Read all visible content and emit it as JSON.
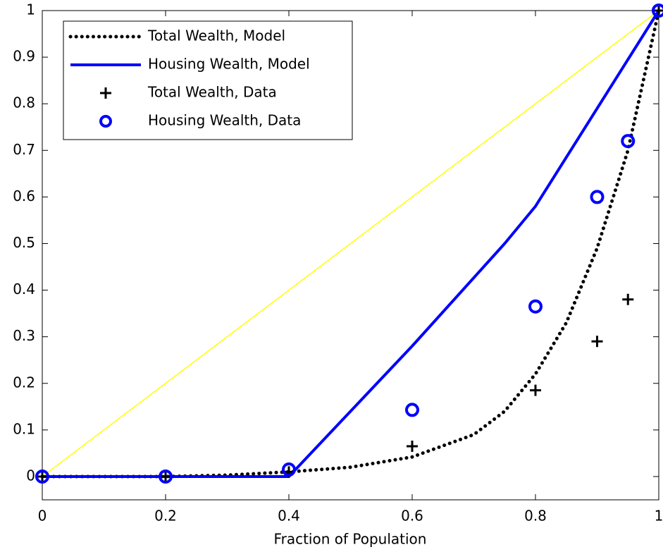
{
  "chart_data": {
    "type": "line",
    "xlabel": "Fraction of Population",
    "xlim": [
      0,
      1
    ],
    "ylim": [
      -0.05,
      1
    ],
    "xticks": [
      0,
      0.2,
      0.4,
      0.6,
      0.8,
      1
    ],
    "yticks": [
      0,
      0.1,
      0.2,
      0.3,
      0.4,
      0.5,
      0.6,
      0.7,
      0.8,
      0.9,
      1
    ],
    "grid": false,
    "legend": "upper left",
    "series": [
      {
        "name": "Total Wealth, Model",
        "color": "#000000",
        "style": "dotted",
        "marker": "none",
        "x": [
          0,
          0.1,
          0.2,
          0.3,
          0.4,
          0.5,
          0.6,
          0.7,
          0.75,
          0.8,
          0.85,
          0.9,
          0.95,
          1
        ],
        "values": [
          0,
          0,
          0,
          0.003,
          0.01,
          0.02,
          0.042,
          0.09,
          0.14,
          0.22,
          0.33,
          0.49,
          0.7,
          1
        ]
      },
      {
        "name": "Housing Wealth, Model",
        "color": "#0000ff",
        "style": "solid",
        "marker": "none",
        "x": [
          0,
          0.2,
          0.4,
          0.6,
          0.75,
          0.8,
          0.9,
          1
        ],
        "values": [
          0,
          0,
          0,
          0.28,
          0.5,
          0.58,
          0.79,
          1
        ]
      },
      {
        "name": "Total Wealth, Data",
        "color": "#000000",
        "style": "none",
        "marker": "plus",
        "x": [
          0,
          0.2,
          0.4,
          0.6,
          0.8,
          0.9,
          0.95,
          1
        ],
        "values": [
          0,
          0,
          0.01,
          0.065,
          0.185,
          0.29,
          0.38,
          1
        ]
      },
      {
        "name": "Housing Wealth, Data",
        "color": "#0000ff",
        "style": "none",
        "marker": "circle",
        "x": [
          0,
          0.2,
          0.4,
          0.6,
          0.8,
          0.9,
          0.95,
          1
        ],
        "values": [
          0,
          0,
          0.015,
          0.143,
          0.365,
          0.6,
          0.72,
          1
        ]
      },
      {
        "color": "#ffff00",
        "style": "thin",
        "marker": "none",
        "x": [
          0,
          1
        ],
        "values": [
          0,
          1
        ]
      }
    ]
  }
}
